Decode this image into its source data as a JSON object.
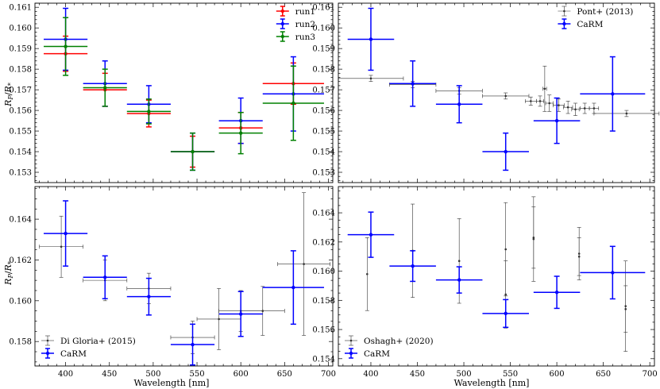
{
  "figure": {
    "y_axis_label": "R_P/R_*",
    "x_axis_label": "Wavelength [nm]"
  },
  "chart_data": [
    {
      "type": "scatter",
      "panel": "top-left",
      "title": "",
      "xlabel": "",
      "ylabel": "R_P/R_*",
      "xlim": [
        365,
        705
      ],
      "ylim": [
        0.1525,
        0.1612
      ],
      "yticks": [
        "0.153",
        "0.154",
        "0.155",
        "0.156",
        "0.157",
        "0.158",
        "0.159",
        "0.160",
        "0.161"
      ],
      "show_xtick_labels": false,
      "legend_position": "top-right",
      "series": [
        {
          "name": "run1",
          "color": "#ff0000",
          "points": [
            {
              "x": 400,
              "xerr": 25,
              "y": 0.15875,
              "yerr": 0.00085
            },
            {
              "x": 445,
              "xerr": 25,
              "y": 0.157,
              "yerr": 0.0008
            },
            {
              "x": 495,
              "xerr": 25,
              "y": 0.15585,
              "yerr": 0.00065
            },
            {
              "x": 545,
              "xerr": 25,
              "y": 0.154,
              "yerr": 0.00075
            },
            {
              "x": 600,
              "xerr": 25,
              "y": 0.15515,
              "yerr": 0.00075
            },
            {
              "x": 660,
              "xerr": 35,
              "y": 0.1573,
              "yerr": 0.001
            }
          ]
        },
        {
          "name": "run2",
          "color": "#0000ff",
          "points": [
            {
              "x": 400,
              "xerr": 25,
              "y": 0.15945,
              "yerr": 0.0015
            },
            {
              "x": 445,
              "xerr": 25,
              "y": 0.1573,
              "yerr": 0.0011
            },
            {
              "x": 495,
              "xerr": 25,
              "y": 0.1563,
              "yerr": 0.0009
            },
            {
              "x": 545,
              "xerr": 25,
              "y": 0.154,
              "yerr": 0.0009
            },
            {
              "x": 600,
              "xerr": 25,
              "y": 0.1555,
              "yerr": 0.0011
            },
            {
              "x": 660,
              "xerr": 35,
              "y": 0.1568,
              "yerr": 0.0018
            }
          ]
        },
        {
          "name": "run3",
          "color": "#008000",
          "points": [
            {
              "x": 400,
              "xerr": 25,
              "y": 0.1591,
              "yerr": 0.0014
            },
            {
              "x": 445,
              "xerr": 25,
              "y": 0.1571,
              "yerr": 0.0009
            },
            {
              "x": 495,
              "xerr": 25,
              "y": 0.15595,
              "yerr": 0.0006
            },
            {
              "x": 545,
              "xerr": 25,
              "y": 0.154,
              "yerr": 0.0009
            },
            {
              "x": 600,
              "xerr": 25,
              "y": 0.1549,
              "yerr": 0.001
            },
            {
              "x": 660,
              "xerr": 35,
              "y": 0.15635,
              "yerr": 0.0018
            }
          ]
        }
      ]
    },
    {
      "type": "scatter",
      "panel": "top-right",
      "title": "",
      "xlabel": "",
      "ylabel": "",
      "xlim": [
        365,
        705
      ],
      "ylim": [
        0.1525,
        0.1612
      ],
      "yticks": [
        "0.153",
        "0.154",
        "0.155",
        "0.156",
        "0.157",
        "0.158",
        "0.159",
        "0.160",
        "0.161"
      ],
      "show_xtick_labels": false,
      "legend_position": "top-right",
      "series": [
        {
          "name": "Pont+ (2013)",
          "color": "#333333",
          "style": "small",
          "points": [
            {
              "x": 400,
              "xerr": 35,
              "y": 0.15755,
              "yerr": 0.00015
            },
            {
              "x": 445,
              "xerr": 25,
              "y": 0.15725,
              "yerr": 0.00015
            },
            {
              "x": 495,
              "xerr": 25,
              "y": 0.15695,
              "yerr": 0.00015
            },
            {
              "x": 545,
              "xerr": 25,
              "y": 0.1567,
              "yerr": 0.00015
            },
            {
              "x": 572,
              "xerr": 6,
              "y": 0.15645,
              "yerr": 0.0002
            },
            {
              "x": 582,
              "xerr": 4,
              "y": 0.15645,
              "yerr": 0.00025
            },
            {
              "x": 587,
              "xerr": 2,
              "y": 0.15705,
              "yerr": 0.0011
            },
            {
              "x": 592,
              "xerr": 4,
              "y": 0.15635,
              "yerr": 0.0004
            },
            {
              "x": 602,
              "xerr": 6,
              "y": 0.15625,
              "yerr": 0.0003
            },
            {
              "x": 612,
              "xerr": 5,
              "y": 0.15615,
              "yerr": 0.0003
            },
            {
              "x": 620,
              "xerr": 4,
              "y": 0.15605,
              "yerr": 0.0003
            },
            {
              "x": 630,
              "xerr": 5,
              "y": 0.1561,
              "yerr": 0.00025
            },
            {
              "x": 640,
              "xerr": 5,
              "y": 0.1561,
              "yerr": 0.00025
            },
            {
              "x": 675,
              "xerr": 35,
              "y": 0.15585,
              "yerr": 0.00015
            }
          ]
        },
        {
          "name": "CaRM",
          "color": "#0000ff",
          "points": [
            {
              "x": 400,
              "xerr": 25,
              "y": 0.15945,
              "yerr": 0.0015
            },
            {
              "x": 445,
              "xerr": 25,
              "y": 0.1573,
              "yerr": 0.0011
            },
            {
              "x": 495,
              "xerr": 25,
              "y": 0.1563,
              "yerr": 0.0009
            },
            {
              "x": 545,
              "xerr": 25,
              "y": 0.154,
              "yerr": 0.0009
            },
            {
              "x": 600,
              "xerr": 25,
              "y": 0.1555,
              "yerr": 0.0011
            },
            {
              "x": 660,
              "xerr": 35,
              "y": 0.1568,
              "yerr": 0.0018
            }
          ]
        }
      ]
    },
    {
      "type": "scatter",
      "panel": "bottom-left",
      "title": "",
      "xlabel": "Wavelength [nm]",
      "ylabel": "R_P/R_*",
      "xlim": [
        365,
        705
      ],
      "ylim": [
        0.1568,
        0.1656
      ],
      "yticks": [
        "0.158",
        "0.160",
        "0.162",
        "0.164"
      ],
      "xticks": [
        "400",
        "450",
        "500",
        "550",
        "600",
        "650",
        "700"
      ],
      "show_xtick_labels": true,
      "legend_position": "bottom-left",
      "series": [
        {
          "name": "Di Gloria+ (2015)",
          "color": "#333333",
          "style": "small",
          "points": [
            {
              "x": 395,
              "xerr": 25,
              "y": 0.16265,
              "yerr": 0.0015
            },
            {
              "x": 445,
              "xerr": 25,
              "y": 0.161,
              "yerr": 0.001
            },
            {
              "x": 495,
              "xerr": 25,
              "y": 0.1606,
              "yerr": 0.00075
            },
            {
              "x": 545,
              "xerr": 25,
              "y": 0.1582,
              "yerr": 0.0008
            },
            {
              "x": 575,
              "xerr": 25,
              "y": 0.1591,
              "yerr": 0.0015
            },
            {
              "x": 600,
              "xerr": 25,
              "y": 0.1595,
              "yerr": 0.001
            },
            {
              "x": 625,
              "xerr": 25,
              "y": 0.1595,
              "yerr": 0.0012
            },
            {
              "x": 672,
              "xerr": 30,
              "y": 0.1618,
              "yerr": 0.0035
            }
          ]
        },
        {
          "name": "CaRM",
          "color": "#0000ff",
          "points": [
            {
              "x": 400,
              "xerr": 25,
              "y": 0.1633,
              "yerr": 0.0016
            },
            {
              "x": 445,
              "xerr": 25,
              "y": 0.16115,
              "yerr": 0.00105
            },
            {
              "x": 495,
              "xerr": 25,
              "y": 0.1602,
              "yerr": 0.0009
            },
            {
              "x": 545,
              "xerr": 25,
              "y": 0.15785,
              "yerr": 0.001
            },
            {
              "x": 600,
              "xerr": 25,
              "y": 0.15935,
              "yerr": 0.0011
            },
            {
              "x": 660,
              "xerr": 35,
              "y": 0.16065,
              "yerr": 0.0018
            }
          ]
        }
      ]
    },
    {
      "type": "scatter",
      "panel": "bottom-right",
      "title": "",
      "xlabel": "Wavelength [nm]",
      "ylabel": "",
      "xlim": [
        365,
        705
      ],
      "ylim": [
        0.1535,
        0.1658
      ],
      "yticks": [
        "0.154",
        "0.156",
        "0.158",
        "0.160",
        "0.162",
        "0.164"
      ],
      "xticks": [
        "400",
        "450",
        "500",
        "550",
        "600",
        "650",
        "700"
      ],
      "show_xtick_labels": true,
      "legend_position": "bottom-left",
      "series": [
        {
          "name": "Oshagh+ (2020)",
          "color": "#333333",
          "style": "small",
          "points": [
            {
              "x": 396,
              "xerr": 0,
              "y": 0.1598,
              "yerr": 0.0025
            },
            {
              "x": 445,
              "xerr": 0,
              "y": 0.1614,
              "yerr": 0.0032
            },
            {
              "x": 495,
              "xerr": 0,
              "y": 0.1607,
              "yerr": 0.0029
            },
            {
              "x": 545,
              "xerr": 0,
              "y": 0.1615,
              "yerr": 0.0032
            },
            {
              "x": 545,
              "xerr": 0,
              "y": 0.1584,
              "yerr": 0.0023
            },
            {
              "x": 575,
              "xerr": 0,
              "y": 0.1622,
              "yerr": 0.0029
            },
            {
              "x": 575,
              "xerr": 0,
              "y": 0.1623,
              "yerr": 0.0021
            },
            {
              "x": 624,
              "xerr": 0,
              "y": 0.1612,
              "yerr": 0.0018
            },
            {
              "x": 624,
              "xerr": 0,
              "y": 0.161,
              "yerr": 0.0013
            },
            {
              "x": 674,
              "xerr": 0,
              "y": 0.1576,
              "yerr": 0.0031
            },
            {
              "x": 674,
              "xerr": 0,
              "y": 0.1574,
              "yerr": 0.0016
            }
          ]
        },
        {
          "name": "CaRM",
          "color": "#0000ff",
          "points": [
            {
              "x": 400,
              "xerr": 25,
              "y": 0.1625,
              "yerr": 0.00155
            },
            {
              "x": 445,
              "xerr": 25,
              "y": 0.16035,
              "yerr": 0.00105
            },
            {
              "x": 495,
              "xerr": 25,
              "y": 0.1594,
              "yerr": 0.0009
            },
            {
              "x": 545,
              "xerr": 25,
              "y": 0.1571,
              "yerr": 0.00095
            },
            {
              "x": 600,
              "xerr": 25,
              "y": 0.15855,
              "yerr": 0.0011
            },
            {
              "x": 660,
              "xerr": 35,
              "y": 0.1599,
              "yerr": 0.0018
            }
          ]
        }
      ]
    }
  ]
}
